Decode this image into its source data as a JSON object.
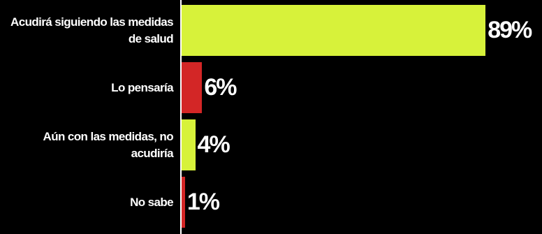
{
  "chart_data": {
    "type": "bar",
    "orientation": "horizontal",
    "categories": [
      "Acudirá siguiendo las medidas de salud",
      "Lo pensaría",
      "Aún con las medidas, no acudiría",
      "No sabe"
    ],
    "values": [
      89,
      6,
      4,
      1
    ],
    "value_labels": [
      "89%",
      "6%",
      "4%",
      "1%"
    ],
    "colors": [
      "#d7f23a",
      "#d32626",
      "#d7f23a",
      "#d32626"
    ]
  }
}
